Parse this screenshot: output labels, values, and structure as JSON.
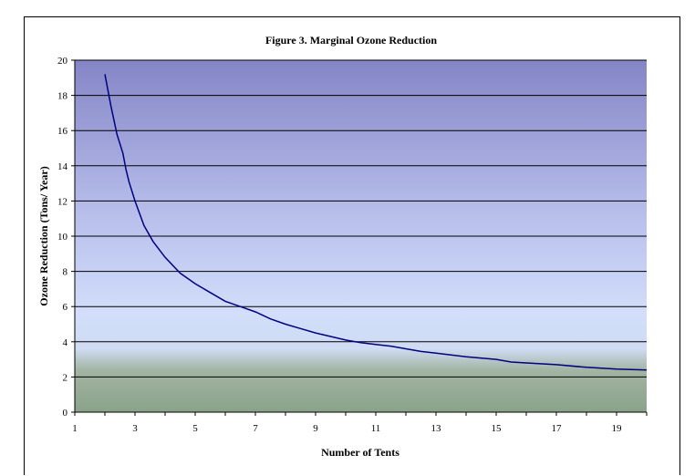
{
  "chart_data": {
    "type": "line",
    "title": "Figure 3. Marginal Ozone Reduction",
    "xlabel": "Number of Tents",
    "ylabel": "Ozone Reduction (Tons/ Year)",
    "xlim": [
      1,
      20
    ],
    "ylim": [
      0,
      20
    ],
    "x_ticks": [
      "1",
      "3",
      "5",
      "7",
      "9",
      "11",
      "13",
      "15",
      "17",
      "19"
    ],
    "y_ticks": [
      "0",
      "2",
      "4",
      "6",
      "8",
      "10",
      "12",
      "14",
      "16",
      "18",
      "20"
    ],
    "grid": "horizontal",
    "legend": "none",
    "series": [
      {
        "color": "#000080",
        "x": [
          2.0,
          2.2,
          2.4,
          2.6,
          2.7,
          2.8,
          3.0,
          3.3,
          3.6,
          4.0,
          4.5,
          5.0,
          5.5,
          6.0,
          6.5,
          7.0,
          7.5,
          8.0,
          8.5,
          9.0,
          9.5,
          10.0,
          10.5,
          11.0,
          11.5,
          12.0,
          12.5,
          13.0,
          14.0,
          15.0,
          15.5,
          16.0,
          17.0,
          18.0,
          19.0,
          20.0
        ],
        "y": [
          19.2,
          17.4,
          15.8,
          14.7,
          13.8,
          13.1,
          12.0,
          10.6,
          9.7,
          8.8,
          7.9,
          7.3,
          6.8,
          6.3,
          6.0,
          5.7,
          5.3,
          5.0,
          4.75,
          4.5,
          4.3,
          4.1,
          3.95,
          3.85,
          3.75,
          3.6,
          3.45,
          3.35,
          3.15,
          3.0,
          2.85,
          2.8,
          2.7,
          2.55,
          2.45,
          2.4
        ]
      }
    ]
  }
}
